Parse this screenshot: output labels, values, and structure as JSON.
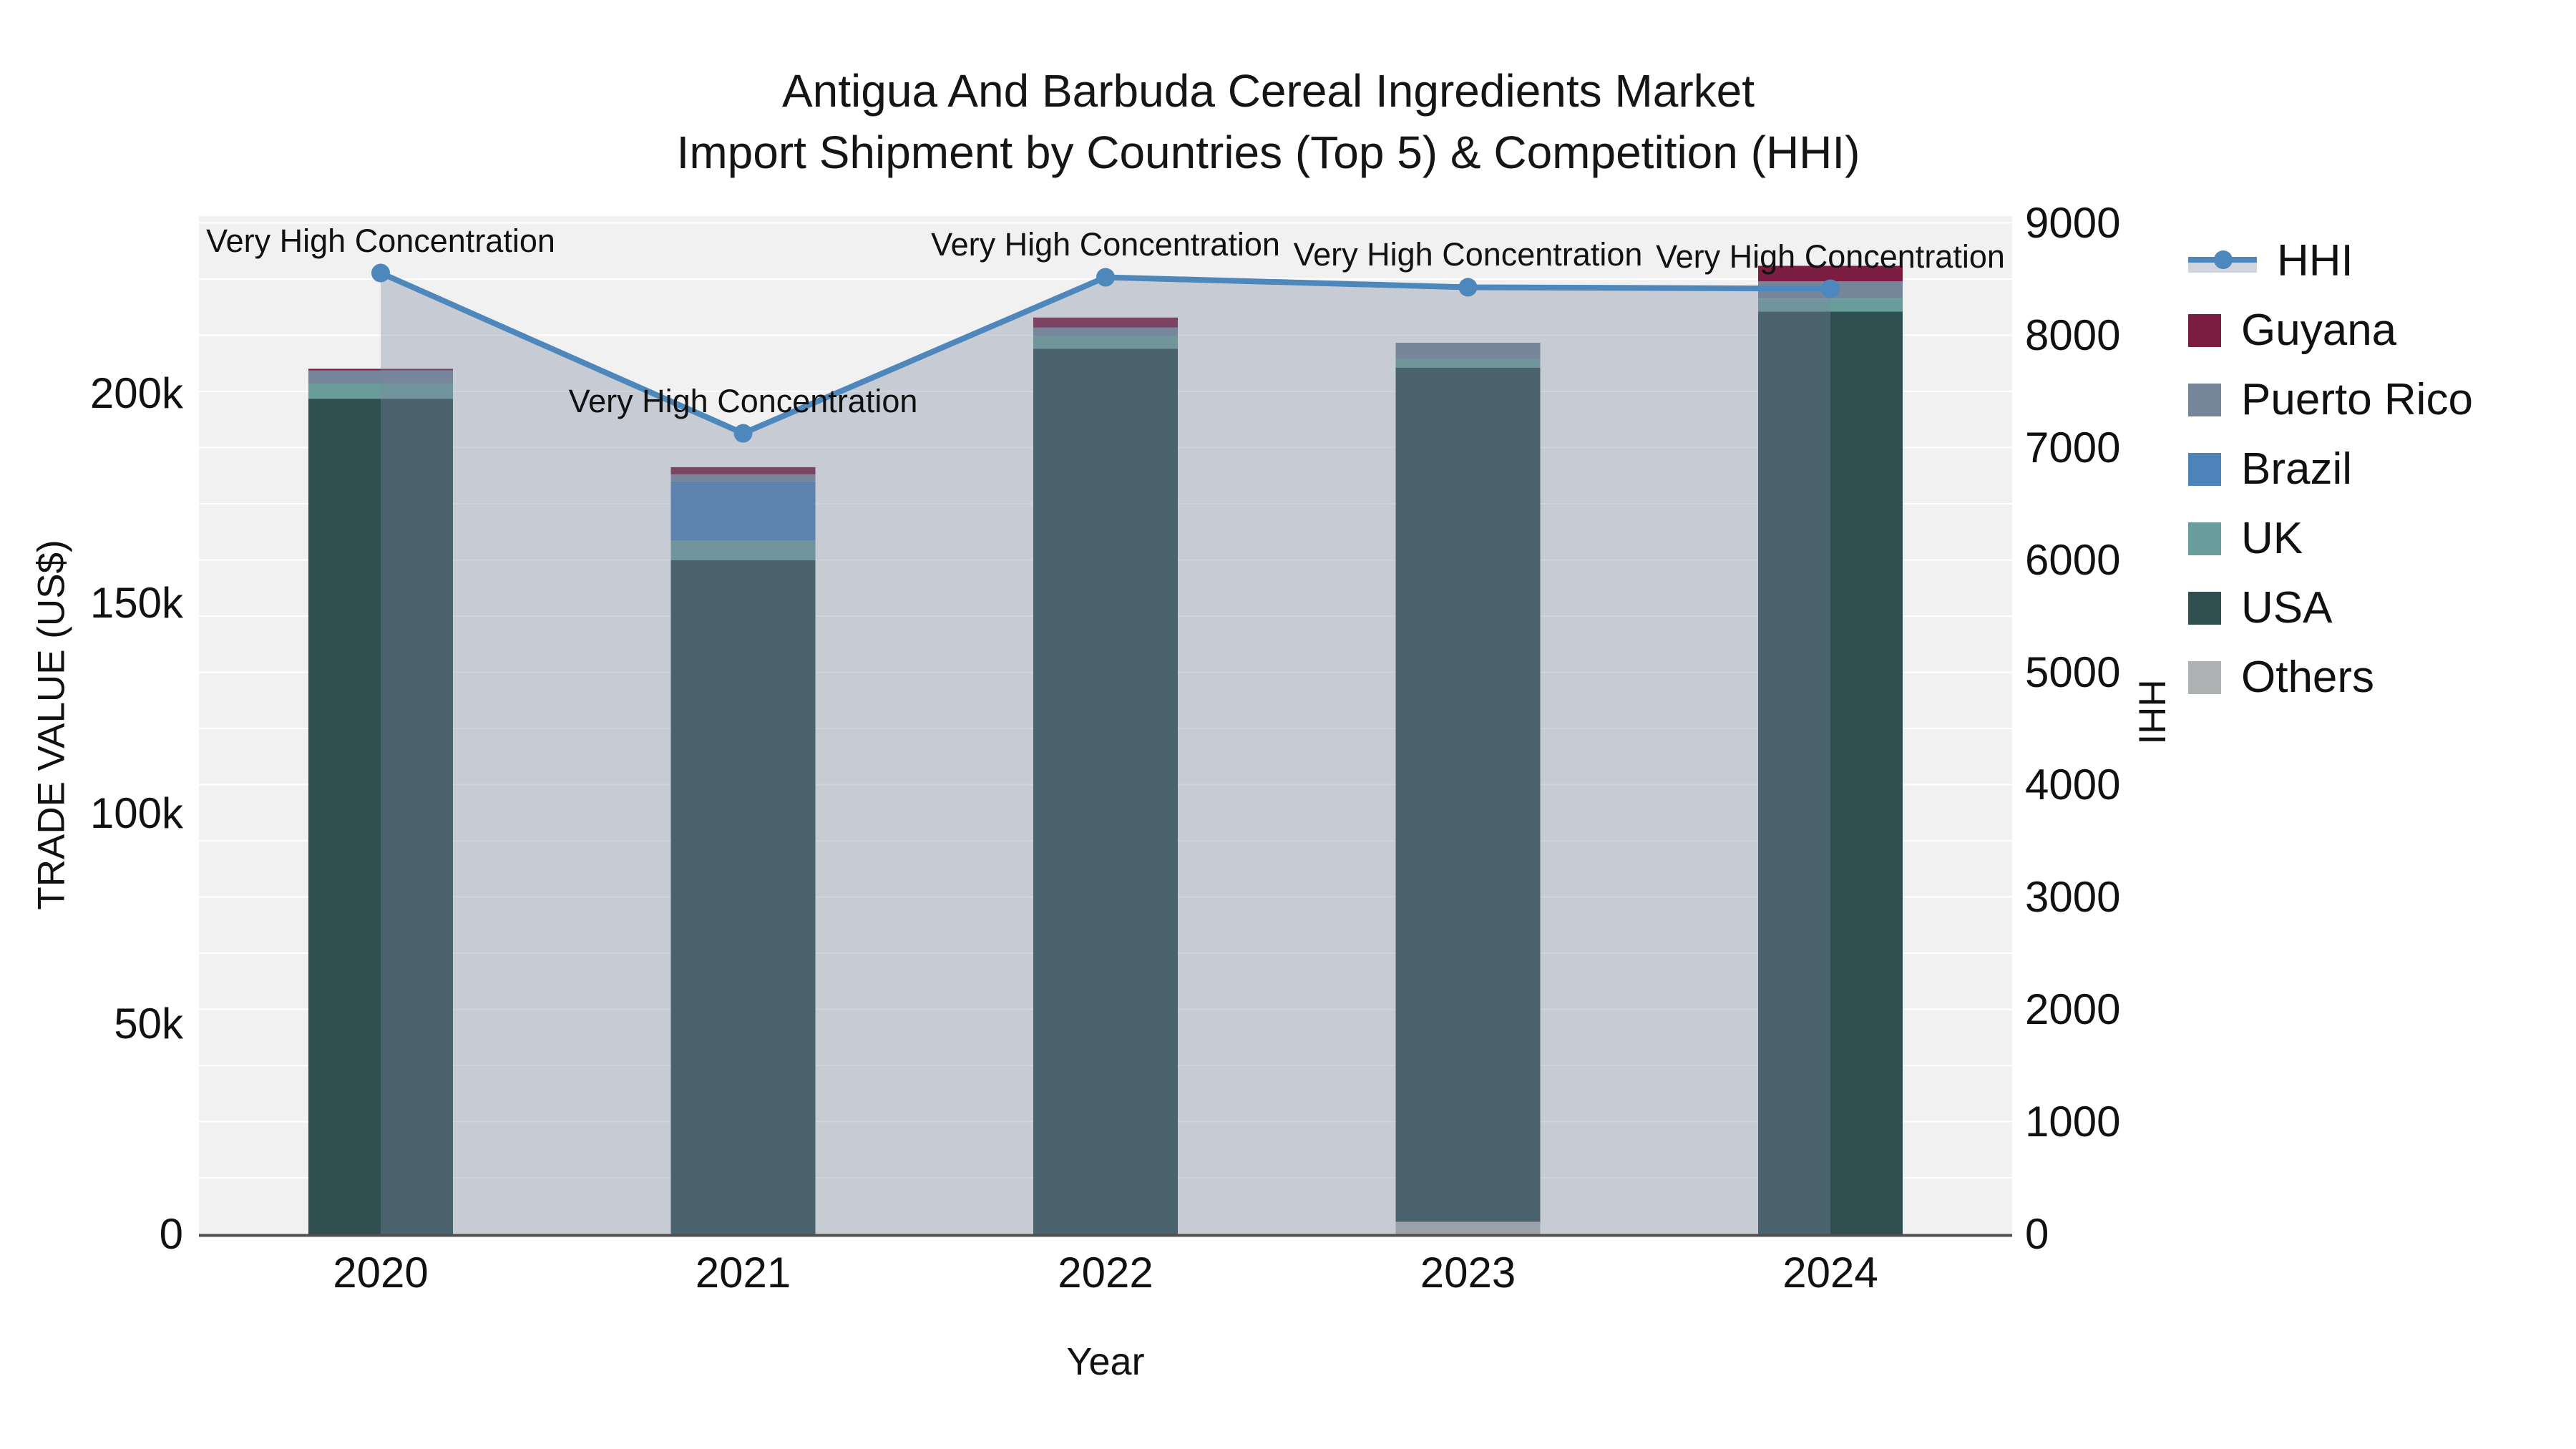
{
  "title": {
    "line1": "Antigua And Barbuda Cereal Ingredients Market",
    "line2": "Import Shipment by Countries (Top 5) & Competition (HHI)"
  },
  "axes": {
    "x": {
      "title": "Year",
      "categories": [
        "2020",
        "2021",
        "2022",
        "2023",
        "2024"
      ]
    },
    "y_left": {
      "title": "TRADE VALUE (US$)",
      "ticks": [
        {
          "label": "0",
          "value": 0
        },
        {
          "label": "50k",
          "value": 50000
        },
        {
          "label": "100k",
          "value": 100000
        },
        {
          "label": "150k",
          "value": 150000
        },
        {
          "label": "200k",
          "value": 200000
        }
      ]
    },
    "y_right": {
      "title": "HHI",
      "ticks": [
        0,
        1000,
        2000,
        3000,
        4000,
        5000,
        6000,
        7000,
        8000,
        9000
      ],
      "grid_step": 500
    }
  },
  "legend": {
    "items": [
      {
        "label": "HHI",
        "type": "line",
        "color": "#4d87bb"
      },
      {
        "label": "Guyana",
        "type": "swatch",
        "color": "#7b1e41"
      },
      {
        "label": "Puerto Rico",
        "type": "swatch",
        "color": "#76869a"
      },
      {
        "label": "Brazil",
        "type": "swatch",
        "color": "#4c83b8"
      },
      {
        "label": "UK",
        "type": "swatch",
        "color": "#699d9b"
      },
      {
        "label": "USA",
        "type": "swatch",
        "color": "#2f4f50"
      },
      {
        "label": "Others",
        "type": "swatch",
        "color": "#aeb1b1"
      }
    ]
  },
  "annotations": [
    {
      "text": "Very High Concentration",
      "year": "2020"
    },
    {
      "text": "Very High Concentration",
      "year": "2021"
    },
    {
      "text": "Very High Concentration",
      "year": "2022"
    },
    {
      "text": "Very High Concentration",
      "year": "2023"
    },
    {
      "text": "Very High Concentration",
      "year": "2024"
    }
  ],
  "chart_data": {
    "type": "bar",
    "subtype": "stacked-bars-with-line-area",
    "categories": [
      "2020",
      "2021",
      "2022",
      "2023",
      "2024"
    ],
    "bar_series_bottom_to_top": [
      {
        "name": "Others",
        "color": "#aeb1b1",
        "values": [
          0,
          0,
          0,
          2900,
          0
        ]
      },
      {
        "name": "USA",
        "color": "#2f4f50",
        "values": [
          198700,
          160300,
          210600,
          203200,
          219400
        ]
      },
      {
        "name": "UK",
        "color": "#699d9b",
        "values": [
          3600,
          4600,
          3100,
          2000,
          3100
        ]
      },
      {
        "name": "Brazil",
        "color": "#4c83b8",
        "values": [
          0,
          14100,
          0,
          0,
          0
        ]
      },
      {
        "name": "Puerto Rico",
        "color": "#76869a",
        "values": [
          3100,
          1700,
          1900,
          3900,
          4100
        ]
      },
      {
        "name": "Guyana",
        "color": "#7b1e41",
        "values": [
          400,
          1700,
          2400,
          0,
          3700
        ]
      }
    ],
    "bar_totals": [
      205800,
      182400,
      218000,
      212000,
      230300
    ],
    "line_series": {
      "name": "HHI",
      "yaxis": "right",
      "color": "#4d87bb",
      "area_fill": "rgba(125,136,158,0.36)",
      "values": [
        8554,
        7127,
        8516,
        8427,
        8414
      ]
    },
    "xlabel": "Year",
    "ylabel_left": "TRADE VALUE (US$)",
    "ylabel_right": "HHI",
    "y_left_range": [
      0,
      242000
    ],
    "y_right_range": [
      0,
      9060
    ],
    "grid": true,
    "legend_position": "right",
    "plot_bgcolor": "#f1f1f2",
    "paper_bgcolor": "#ffffff",
    "gridline_color": "rgba(255,255,255,0.9)",
    "axisline_color": "#4f4f4f"
  }
}
